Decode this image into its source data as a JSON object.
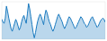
{
  "chart_data": {
    "type": "area",
    "color": "#1a7abf",
    "values": [
      2,
      0,
      -1,
      3,
      12,
      8,
      3,
      -1,
      -5,
      -7,
      -4,
      -1,
      2,
      0,
      -3,
      -6,
      -4,
      0,
      3,
      5,
      2,
      -1,
      6,
      14,
      10,
      4,
      -2,
      -8,
      -12,
      -8,
      -3,
      1,
      4,
      6,
      4,
      1,
      -2,
      5,
      9,
      7,
      3,
      0,
      -2,
      -5,
      -7,
      -5,
      -2,
      1,
      4,
      6,
      4,
      2,
      0,
      -3,
      -5,
      -3,
      -1,
      2,
      4,
      3,
      1,
      -1,
      -3,
      -5,
      -4,
      -2,
      0,
      2,
      4,
      3,
      1,
      -1,
      -2,
      -4,
      -3,
      -1,
      1,
      3,
      4,
      2,
      0,
      -2,
      -4,
      -3,
      -1,
      1,
      2,
      3,
      2,
      0
    ],
    "xlim": [
      0,
      89
    ],
    "ylim": [
      -13,
      15.3
    ],
    "tick_labels": false
  }
}
